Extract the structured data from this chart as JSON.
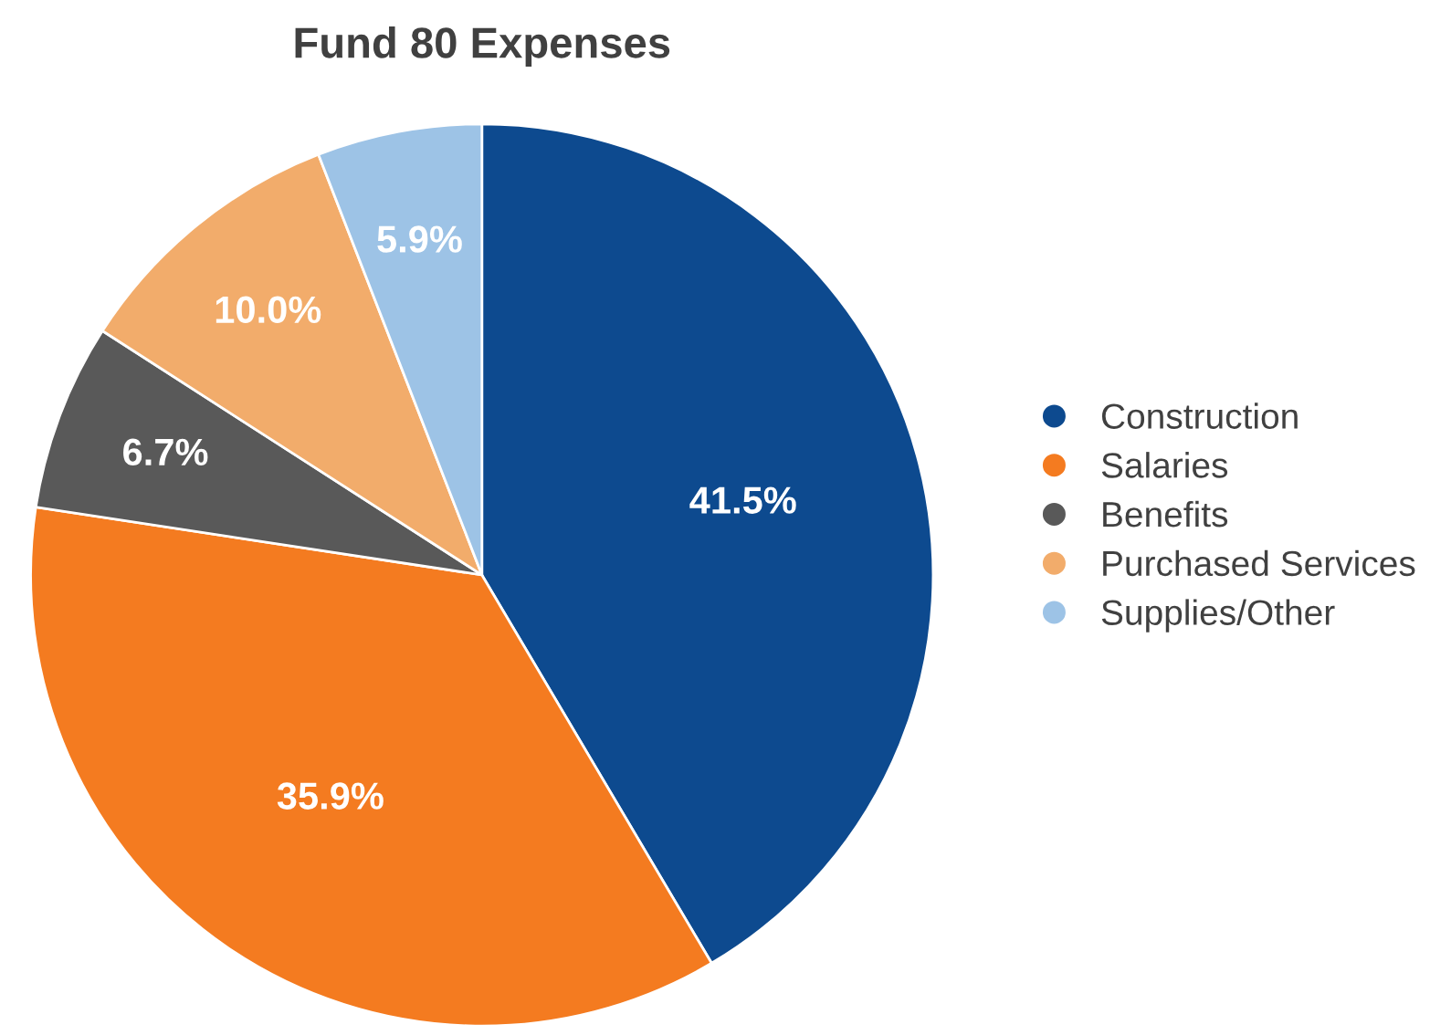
{
  "chart_data": {
    "type": "pie",
    "title": "Fund 80 Expenses",
    "categories": [
      "Construction",
      "Salaries",
      "Benefits",
      "Purchased Services",
      "Supplies/Other"
    ],
    "values": [
      41.5,
      35.9,
      6.7,
      10.0,
      5.9
    ],
    "colors": [
      "#0d4a8f",
      "#f47b20",
      "#595959",
      "#f2ac6b",
      "#9dc3e6"
    ],
    "value_labels": [
      "41.5%",
      "35.9%",
      "6.7%",
      "10.0%",
      "5.9%"
    ],
    "legend": "right"
  }
}
